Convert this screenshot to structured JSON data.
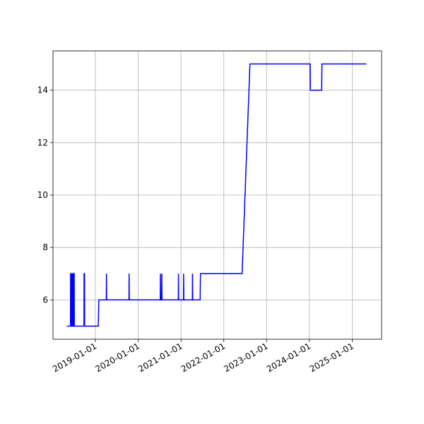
{
  "chart_data": {
    "type": "line",
    "color": "#0000ff",
    "grid": true,
    "x": [
      "2018-05-04",
      "2018-06-03",
      "2018-06-04",
      "2018-06-09",
      "2018-06-10",
      "2018-06-15",
      "2018-06-16",
      "2018-06-21",
      "2018-06-22",
      "2018-06-27",
      "2018-06-28",
      "2018-07-05",
      "2018-07-06",
      "2018-09-26",
      "2018-09-27",
      "2018-10-01",
      "2018-10-02",
      "2019-01-26",
      "2019-01-31",
      "2019-04-05",
      "2019-04-06",
      "2019-04-08",
      "2019-10-15",
      "2019-10-16",
      "2019-10-18",
      "2020-07-08",
      "2020-07-09",
      "2020-07-11",
      "2020-07-20",
      "2020-07-21",
      "2020-07-23",
      "2020-12-09",
      "2020-12-10",
      "2020-12-12",
      "2021-01-22",
      "2021-01-23",
      "2021-01-25",
      "2021-04-08",
      "2021-04-09",
      "2021-04-11",
      "2021-06-13",
      "2021-06-16",
      "2022-06-06",
      "2022-08-12",
      "2024-01-08",
      "2024-01-10",
      "2024-04-15",
      "2024-04-17",
      "2025-05-01"
    ],
    "values": [
      5,
      5,
      7,
      7,
      5,
      5,
      7,
      7,
      5,
      5,
      7,
      7,
      5,
      5,
      7,
      7,
      5,
      5,
      6,
      6,
      7,
      6,
      6,
      7,
      6,
      6,
      7,
      6,
      6,
      7,
      6,
      6,
      7,
      6,
      6,
      7,
      6,
      6,
      7,
      6,
      6,
      7,
      7,
      15,
      15,
      14,
      14,
      15,
      15
    ],
    "xlim": [
      "2018-01-05",
      "2025-09-08"
    ],
    "xticks": [
      "2019-01-01",
      "2020-01-01",
      "2021-01-01",
      "2022-01-01",
      "2023-01-01",
      "2024-01-01",
      "2025-01-01"
    ],
    "ylim": [
      4.5,
      15.5
    ],
    "yticks": [
      6,
      8,
      10,
      12,
      14
    ]
  }
}
